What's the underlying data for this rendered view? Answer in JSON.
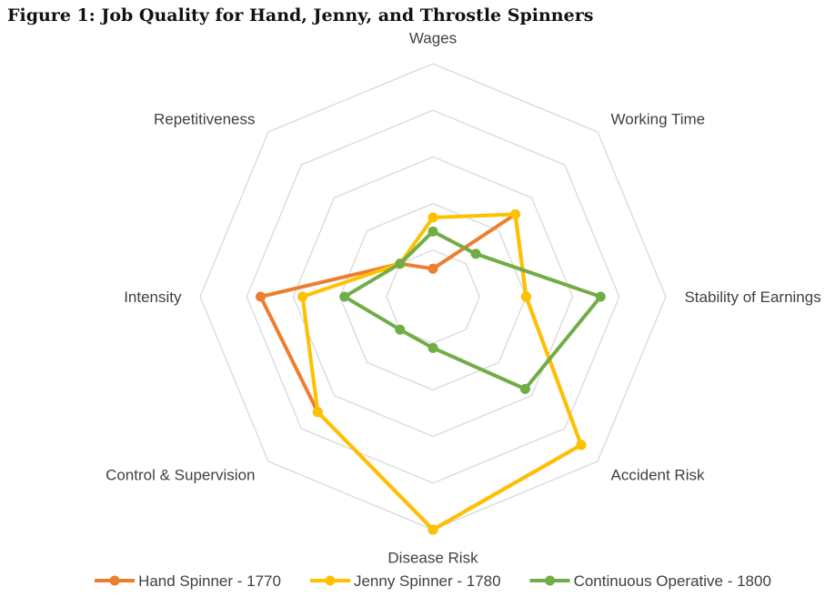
{
  "title": "Figure 1: Job Quality for Hand, Jenny, and Throstle Spinners",
  "chart_data": {
    "type": "radar",
    "axes": [
      "Wages",
      "Working Time",
      "Stability of Earnings",
      "Accident Risk",
      "Disease Risk",
      "Control & Supervision",
      "Intensity",
      "Repetitiveness"
    ],
    "range": [
      0,
      5
    ],
    "gridlines": 5,
    "grid": true,
    "legend_position": "bottom",
    "series": [
      {
        "name": "Hand Spinner - 1770",
        "color": "#ED7D31",
        "values": [
          0.6,
          2.5,
          2.0,
          4.5,
          5.0,
          3.5,
          3.7,
          1.0
        ]
      },
      {
        "name": "Jenny Spinner - 1780",
        "color": "#FFC000",
        "values": [
          1.7,
          2.5,
          2.0,
          4.5,
          5.0,
          3.5,
          2.8,
          1.0
        ]
      },
      {
        "name": "Continuous Operative - 1800",
        "color": "#70AD47",
        "values": [
          1.4,
          1.3,
          3.6,
          2.8,
          1.1,
          1.0,
          1.9,
          1.0
        ]
      }
    ]
  }
}
